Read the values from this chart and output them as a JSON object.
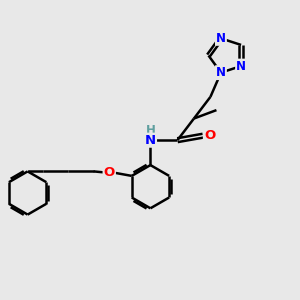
{
  "background_color": "#e8e8e8",
  "bond_color": "#000000",
  "atom_colors": {
    "N": "#0000ff",
    "O": "#ff0000",
    "H": "#5f9f9f",
    "C": "#000000"
  },
  "bond_width": 1.8,
  "font_size": 9
}
